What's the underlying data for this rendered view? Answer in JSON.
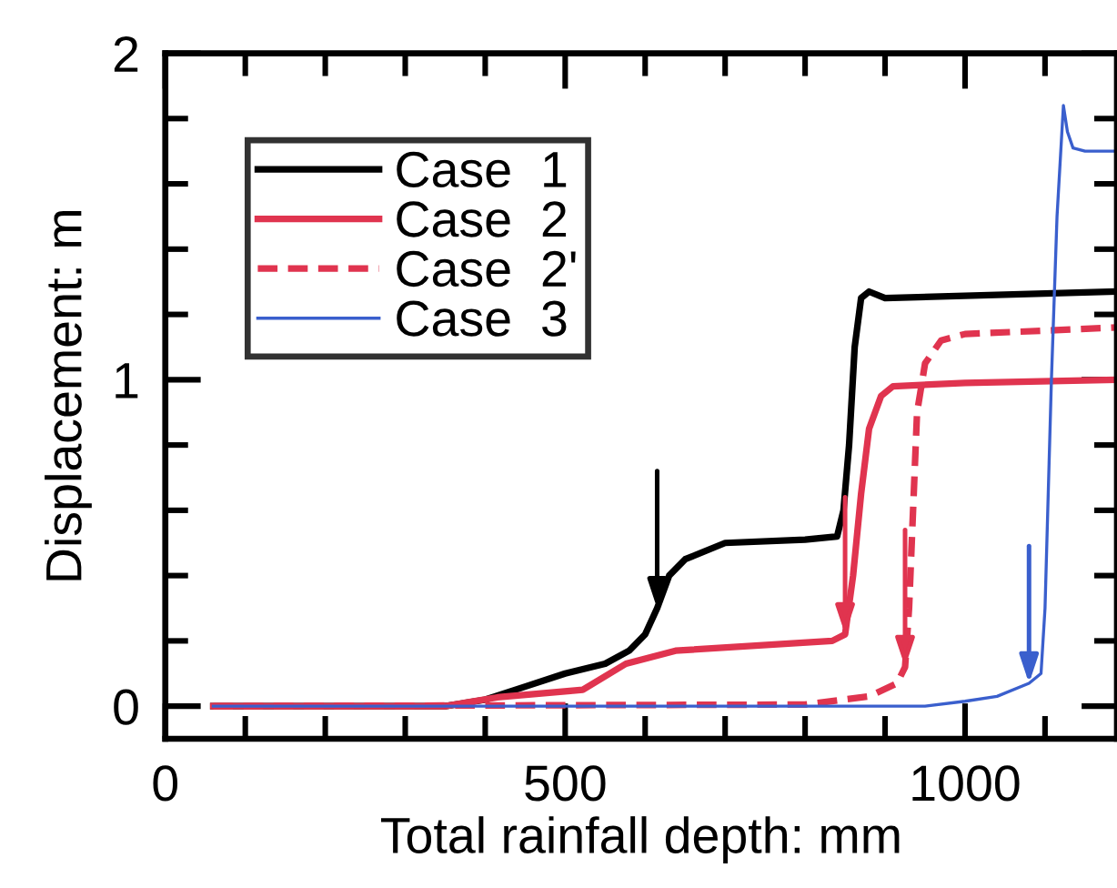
{
  "chart_data": {
    "type": "line",
    "xlabel": "Total rainfall depth: mm",
    "ylabel": "Displacement: m",
    "xlim": [
      0,
      1190
    ],
    "ylim": [
      -0.1,
      2
    ],
    "xticks": [
      0,
      {
        "value": 100,
        "label": null
      },
      {
        "value": 200,
        "label": null
      },
      {
        "value": 300,
        "label": null
      },
      {
        "value": 400,
        "label": null
      },
      500,
      {
        "value": 600,
        "label": null
      },
      {
        "value": 700,
        "label": null
      },
      {
        "value": 800,
        "label": null
      },
      {
        "value": 900,
        "label": null
      },
      1000,
      {
        "value": 1100,
        "label": null
      }
    ],
    "yticks": [
      0,
      {
        "value": 0.2,
        "label": null
      },
      {
        "value": 0.4,
        "label": null
      },
      {
        "value": 0.6,
        "label": null
      },
      {
        "value": 0.8,
        "label": null
      },
      1,
      {
        "value": 1.2,
        "label": null
      },
      {
        "value": 1.4,
        "label": null
      },
      {
        "value": 1.6,
        "label": null
      },
      {
        "value": 1.8,
        "label": null
      },
      2
    ],
    "grid": false,
    "legend": "top left",
    "marker": "none",
    "series": [
      {
        "name": "Case  1",
        "color": "#000000",
        "line_style": "solid",
        "x": [
          60,
          350,
          400,
          450,
          500,
          550,
          580,
          600,
          615,
          630,
          650,
          700,
          800,
          840,
          848,
          855,
          862,
          870,
          880,
          900,
          1190
        ],
        "values": [
          0,
          0,
          0.02,
          0.06,
          0.1,
          0.13,
          0.17,
          0.22,
          0.3,
          0.4,
          0.45,
          0.5,
          0.51,
          0.52,
          0.6,
          0.8,
          1.1,
          1.25,
          1.27,
          1.25,
          1.27
        ]
      },
      {
        "name": "Case  2",
        "color": "#e0344f",
        "line_style": "solid",
        "x": [
          60,
          350,
          415,
          522,
          576,
          638,
          834,
          850,
          860,
          870,
          880,
          895,
          910,
          1000,
          1190
        ],
        "values": [
          0,
          0,
          0.027,
          0.05,
          0.13,
          0.17,
          0.2,
          0.22,
          0.4,
          0.65,
          0.85,
          0.95,
          0.98,
          0.99,
          1.0
        ]
      },
      {
        "name": "Case  2'",
        "color": "#e0344f",
        "line_style": "dashed",
        "x": [
          60,
          800,
          880,
          915,
          925,
          930,
          935,
          940,
          950,
          970,
          1000,
          1190
        ],
        "values": [
          0,
          0.005,
          0.03,
          0.07,
          0.12,
          0.3,
          0.6,
          0.9,
          1.05,
          1.12,
          1.14,
          1.16
        ]
      },
      {
        "name": "Case  3",
        "color": "#3a5fcd",
        "line_style": "solid",
        "x": [
          60,
          950,
          1000,
          1040,
          1080,
          1095,
          1100,
          1108,
          1115,
          1123,
          1128,
          1135,
          1150,
          1190
        ],
        "values": [
          0,
          0,
          0.015,
          0.03,
          0.07,
          0.1,
          0.3,
          1.0,
          1.5,
          1.84,
          1.76,
          1.71,
          1.7,
          1.7
        ]
      }
    ]
  }
}
